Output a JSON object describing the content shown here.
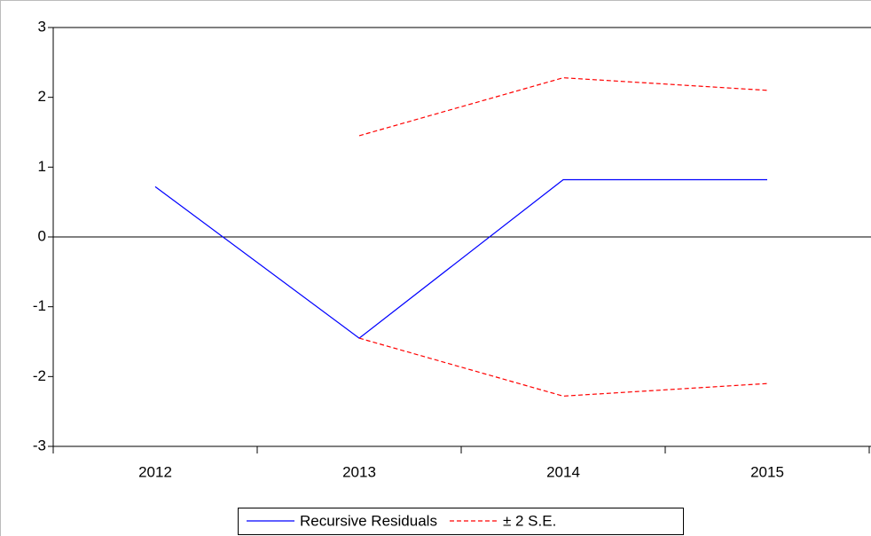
{
  "chart_data": {
    "type": "line",
    "categories": [
      "2012",
      "2013",
      "2014",
      "2015"
    ],
    "series": [
      {
        "name": "Recursive Residuals",
        "color": "#0000ff",
        "dash": false,
        "values": [
          0.72,
          -1.45,
          0.82,
          0.82
        ]
      },
      {
        "name": "± 2 S.E.",
        "color": "#ff0000",
        "dash": true,
        "values": [
          null,
          1.45,
          2.28,
          2.1
        ],
        "lower": [
          null,
          -1.45,
          -2.28,
          -2.1
        ]
      }
    ],
    "ylim": [
      -3,
      3
    ],
    "yticks": [
      -3,
      -2,
      -1,
      0,
      1,
      2,
      3
    ],
    "zero_line": true,
    "legend": "bottom"
  }
}
